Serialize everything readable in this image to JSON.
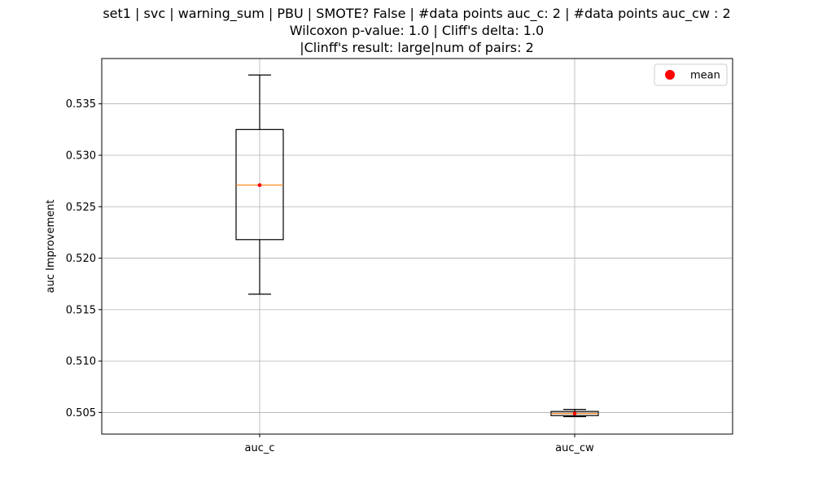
{
  "chart_data": {
    "type": "box",
    "title_lines": [
      "set1 | svc | warning_sum | PBU | SMOTE? False | #data points auc_c: 2 | #data points auc_cw : 2",
      "Wilcoxon p-value: 1.0 | Cliff's delta: 1.0",
      "|Clinff's result: large|num of pairs: 2"
    ],
    "xlabel": "",
    "ylabel": "auc Improvement",
    "ylim": [
      0.5029,
      0.5394
    ],
    "yticks": [
      0.505,
      0.51,
      0.515,
      0.52,
      0.525,
      0.53,
      0.535
    ],
    "ytick_labels": [
      "0.505",
      "0.510",
      "0.515",
      "0.520",
      "0.525",
      "0.530",
      "0.535"
    ],
    "categories": [
      "auc_c",
      "auc_cw"
    ],
    "grid": true,
    "legend": {
      "position": "top-right",
      "entries": [
        {
          "label": "mean",
          "color": "#ff0000",
          "marker": "circle"
        }
      ]
    },
    "boxes": [
      {
        "label": "auc_c",
        "whisker_low": 0.5165,
        "q1": 0.5218,
        "median": 0.5271,
        "mean": 0.5271,
        "q3": 0.5325,
        "whisker_high": 0.5378
      },
      {
        "label": "auc_cw",
        "whisker_low": 0.5046,
        "q1": 0.5047,
        "median": 0.5049,
        "mean": 0.5049,
        "q3": 0.5051,
        "whisker_high": 0.5053
      }
    ],
    "colors": {
      "box": "#000000",
      "median": "#ff7f0e",
      "mean": "#ff0000",
      "grid": "#b0b0b0"
    }
  }
}
